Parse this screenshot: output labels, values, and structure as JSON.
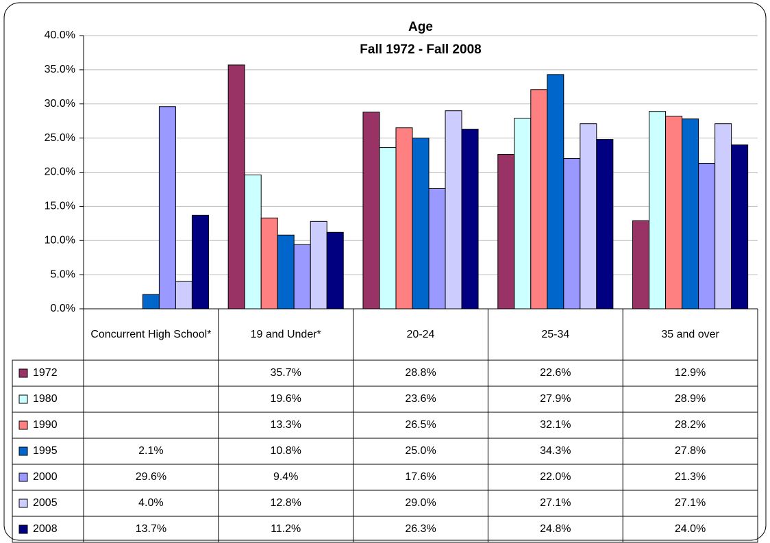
{
  "chart_data": {
    "type": "bar",
    "title": "Age",
    "subtitle": "Fall 1972 - Fall 2008",
    "categories": [
      "Concurrent High School*",
      "19 and Under*",
      "20-24",
      "25-34",
      "35 and over"
    ],
    "series": [
      {
        "name": "1972",
        "color": "#993366",
        "values": [
          null,
          35.7,
          28.8,
          22.6,
          12.9
        ],
        "value_labels": [
          null,
          "35.7%",
          "28.8%",
          "22.6%",
          "12.9%"
        ]
      },
      {
        "name": "1980",
        "color": "#ccffff",
        "values": [
          null,
          19.6,
          23.6,
          27.9,
          28.9
        ],
        "value_labels": [
          null,
          "19.6%",
          "23.6%",
          "27.9%",
          "28.9%"
        ]
      },
      {
        "name": "1990",
        "color": "#ff8080",
        "values": [
          null,
          13.3,
          26.5,
          32.1,
          28.2
        ],
        "value_labels": [
          null,
          "13.3%",
          "26.5%",
          "32.1%",
          "28.2%"
        ]
      },
      {
        "name": "1995",
        "color": "#0066cc",
        "values": [
          2.1,
          10.8,
          25.0,
          34.3,
          27.8
        ],
        "value_labels": [
          "2.1%",
          "10.8%",
          "25.0%",
          "34.3%",
          "27.8%"
        ]
      },
      {
        "name": "2000",
        "color": "#9999ff",
        "values": [
          29.6,
          9.4,
          17.6,
          22.0,
          21.3
        ],
        "value_labels": [
          "29.6%",
          "9.4%",
          "17.6%",
          "22.0%",
          "21.3%"
        ]
      },
      {
        "name": "2005",
        "color": "#ccccff",
        "values": [
          4.0,
          12.8,
          29.0,
          27.1,
          27.1
        ],
        "value_labels": [
          "4.0%",
          "12.8%",
          "29.0%",
          "27.1%",
          "27.1%"
        ]
      },
      {
        "name": "2008",
        "color": "#000080",
        "values": [
          13.7,
          11.2,
          26.3,
          24.8,
          24.0
        ],
        "value_labels": [
          "13.7%",
          "11.2%",
          "26.3%",
          "24.8%",
          "24.0%"
        ]
      }
    ],
    "ylim": [
      0,
      40
    ],
    "yticks": [
      {
        "value": 0,
        "label": "0.0%"
      },
      {
        "value": 5,
        "label": "5.0%"
      },
      {
        "value": 10,
        "label": "10.0%"
      },
      {
        "value": 15,
        "label": "15.0%"
      },
      {
        "value": 20,
        "label": "20.0%"
      },
      {
        "value": 25,
        "label": "25.0%"
      },
      {
        "value": 30,
        "label": "30.0%"
      },
      {
        "value": 35,
        "label": "35.0%"
      },
      {
        "value": 40,
        "label": "40.0%"
      }
    ],
    "grid": true
  }
}
